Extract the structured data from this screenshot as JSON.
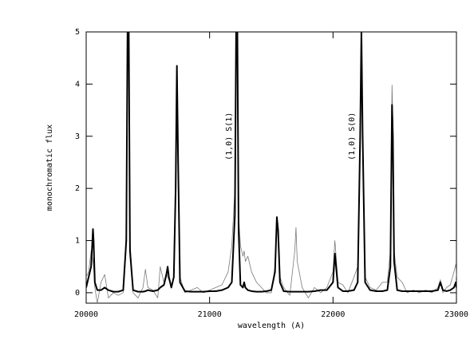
{
  "chart_data": {
    "type": "line",
    "x_label": "wavelength (A)",
    "y_label": "monochromatic flux",
    "xlim": [
      20000,
      23000
    ],
    "ylim": [
      -0.2,
      5
    ],
    "xticks": [
      20000,
      21000,
      22000,
      23000
    ],
    "yticks": [
      0,
      1,
      2,
      3,
      4,
      5
    ],
    "grid": false,
    "x": [
      20000,
      20020,
      20040,
      20055,
      20060,
      20070,
      20090,
      20120,
      20150,
      20180,
      20220,
      20260,
      20300,
      20325,
      20335,
      20345,
      20355,
      20380,
      20420,
      20460,
      20480,
      20500,
      20540,
      20580,
      20600,
      20630,
      20650,
      20660,
      20670,
      20690,
      20710,
      20725,
      20735,
      20745,
      20760,
      20800,
      20850,
      20900,
      20950,
      21000,
      21050,
      21100,
      21150,
      21180,
      21205,
      21215,
      21225,
      21235,
      21250,
      21270,
      21280,
      21290,
      21310,
      21340,
      21380,
      21420,
      21460,
      21500,
      21530,
      21545,
      21555,
      21570,
      21600,
      21650,
      21690,
      21700,
      21710,
      21750,
      21800,
      21850,
      21900,
      21950,
      22000,
      22015,
      22025,
      22040,
      22080,
      22120,
      22170,
      22200,
      22220,
      22230,
      22240,
      22260,
      22300,
      22350,
      22400,
      22440,
      22465,
      22478,
      22485,
      22495,
      22520,
      22560,
      22600,
      22650,
      22700,
      22750,
      22800,
      22850,
      22870,
      22890,
      22920,
      22950,
      22980,
      22995,
      23000
    ],
    "series": [
      {
        "color": "#7a7a7a",
        "width": 0.8,
        "values": [
          0.3,
          0.4,
          0.8,
          0.6,
          0.5,
          0.1,
          -0.2,
          0.2,
          0.35,
          -0.1,
          0.0,
          -0.05,
          0.0,
          1.2,
          5,
          5,
          1.0,
          0.0,
          -0.1,
          0.1,
          0.45,
          0.1,
          0.05,
          -0.1,
          0.5,
          0.2,
          0.4,
          0.3,
          0.25,
          0.1,
          0.3,
          2.2,
          4.2,
          2.6,
          0.3,
          0.0,
          0.05,
          0.1,
          0.0,
          0.05,
          0.1,
          0.15,
          0.4,
          0.9,
          2,
          5,
          5,
          1.5,
          0.9,
          0.7,
          0.8,
          0.6,
          0.7,
          0.4,
          0.2,
          0.1,
          0.0,
          0.0,
          0.5,
          1.35,
          1.1,
          0.3,
          0.1,
          -0.05,
          0.8,
          1.25,
          0.6,
          0.1,
          -0.1,
          0.1,
          0.0,
          0.1,
          0.4,
          1.0,
          0.7,
          0.2,
          0.15,
          0.0,
          0.3,
          0.5,
          3.2,
          5,
          3.2,
          0.3,
          0.1,
          0.05,
          0.2,
          0.2,
          0.8,
          3.98,
          3.3,
          0.8,
          0.3,
          0.2,
          0.0,
          0.05,
          0.0,
          0.05,
          0.0,
          0.1,
          0.25,
          0.0,
          0.1,
          0.15,
          0.4,
          0.55,
          0.3
        ]
      },
      {
        "color": "#000000",
        "width": 2,
        "values": [
          0.1,
          0.3,
          0.5,
          1.22,
          1.0,
          0.2,
          0.05,
          0.05,
          0.1,
          0.05,
          0.02,
          0.02,
          0.05,
          1.0,
          5,
          5,
          0.8,
          0.05,
          0.02,
          0.02,
          0.03,
          0.05,
          0.03,
          0.05,
          0.1,
          0.15,
          0.35,
          0.5,
          0.3,
          0.1,
          0.3,
          2.0,
          4.35,
          2.5,
          0.2,
          0.03,
          0.02,
          0.02,
          0.02,
          0.03,
          0.03,
          0.05,
          0.1,
          0.2,
          1.5,
          5,
          5,
          1.2,
          0.15,
          0.1,
          0.2,
          0.1,
          0.05,
          0.03,
          0.02,
          0.02,
          0.03,
          0.05,
          0.4,
          1.45,
          1.2,
          0.2,
          0.03,
          0.02,
          0.02,
          0.02,
          0.02,
          0.02,
          0.02,
          0.03,
          0.05,
          0.05,
          0.2,
          0.75,
          0.5,
          0.1,
          0.03,
          0.03,
          0.05,
          0.2,
          3.0,
          5,
          3.0,
          0.2,
          0.05,
          0.03,
          0.03,
          0.05,
          0.5,
          3.6,
          3.0,
          0.6,
          0.05,
          0.03,
          0.03,
          0.03,
          0.03,
          0.03,
          0.03,
          0.05,
          0.2,
          0.05,
          0.03,
          0.05,
          0.1,
          0.2,
          0.1
        ]
      }
    ],
    "annotations": [
      {
        "text": "(1,0) S(1)",
        "x": 21157,
        "y": 3.0
      },
      {
        "text": "(1,0) S(0)",
        "x": 22152,
        "y": 3.0
      }
    ]
  }
}
